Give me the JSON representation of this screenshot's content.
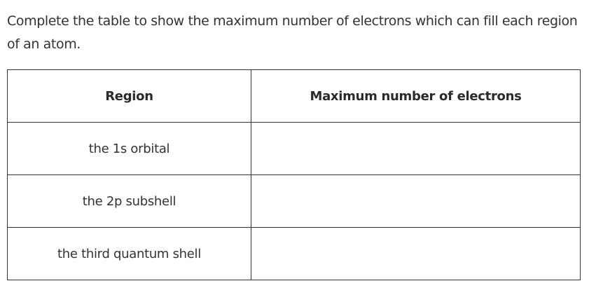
{
  "question": "Complete the table to show the maximum number of electrons which can fill each region of an atom.",
  "table": {
    "headers": [
      "Region",
      "Maximum number of electrons"
    ],
    "rows": [
      {
        "region": "the 1s orbital",
        "max": ""
      },
      {
        "region": "the 2p subshell",
        "max": ""
      },
      {
        "region": "the third quantum shell",
        "max": ""
      }
    ]
  }
}
